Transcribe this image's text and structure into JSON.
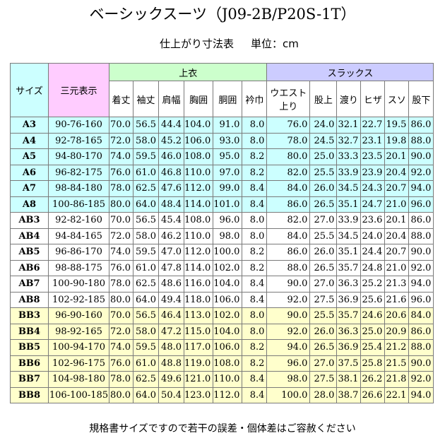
{
  "title": "ベーシックスーツ（J09-2B/P20S-1T）",
  "subtitle": {
    "label": "仕上がり寸法表",
    "unit": "単位：cm"
  },
  "header": {
    "size": "サイズ",
    "combo": "三元表示",
    "top_group": "上衣",
    "slacks_group": "スラックス",
    "top_cols": [
      "着丈",
      "袖丈",
      "肩幅",
      "胸囲",
      "胴囲",
      "衿巾"
    ],
    "slacks_cols": [
      "ウエスト上り",
      "股上",
      "渡り",
      "ヒザ",
      "スソ",
      "股下"
    ]
  },
  "colors": {
    "a_rows": "#ccffff",
    "ab_rows": "#ffffff",
    "bb_rows": "#ffffcc",
    "combo_header": "#ffccff",
    "top_header": "#ccffcc",
    "slacks_header": "#ccccff"
  },
  "rows": [
    {
      "size": "A3",
      "combo": "90-76-160",
      "v": [
        "70.0",
        "56.5",
        "44.4",
        "104.0",
        "91.0",
        "8.0",
        "76.0",
        "24.0",
        "32.1",
        "22.7",
        "19.5",
        "86.0"
      ]
    },
    {
      "size": "A4",
      "combo": "92-78-165",
      "v": [
        "72.0",
        "58.0",
        "45.2",
        "106.0",
        "93.0",
        "8.0",
        "78.0",
        "24.5",
        "32.7",
        "23.1",
        "19.8",
        "88.0"
      ]
    },
    {
      "size": "A5",
      "combo": "94-80-170",
      "v": [
        "74.0",
        "59.5",
        "46.0",
        "108.0",
        "95.0",
        "8.2",
        "80.0",
        "25.0",
        "33.3",
        "23.5",
        "20.1",
        "90.0"
      ]
    },
    {
      "size": "A6",
      "combo": "96-82-175",
      "v": [
        "76.0",
        "61.0",
        "46.8",
        "110.0",
        "97.0",
        "8.2",
        "82.0",
        "25.5",
        "33.9",
        "23.9",
        "20.4",
        "92.0"
      ]
    },
    {
      "size": "A7",
      "combo": "98-84-180",
      "v": [
        "78.0",
        "62.5",
        "47.6",
        "112.0",
        "99.0",
        "8.4",
        "84.0",
        "26.0",
        "34.5",
        "24.3",
        "20.7",
        "94.0"
      ]
    },
    {
      "size": "A8",
      "combo": "100-86-185",
      "v": [
        "80.0",
        "64.0",
        "48.4",
        "114.0",
        "101.0",
        "8.4",
        "86.0",
        "26.5",
        "35.1",
        "24.7",
        "21.0",
        "96.0"
      ]
    },
    {
      "size": "AB3",
      "combo": "92-82-160",
      "v": [
        "70.0",
        "56.5",
        "45.4",
        "108.0",
        "96.0",
        "8.0",
        "82.0",
        "27.0",
        "33.9",
        "23.6",
        "20.1",
        "86.0"
      ]
    },
    {
      "size": "AB4",
      "combo": "94-84-165",
      "v": [
        "72.0",
        "58.0",
        "46.2",
        "110.0",
        "98.0",
        "8.0",
        "84.0",
        "25.5",
        "34.5",
        "24.0",
        "20.4",
        "88.0"
      ]
    },
    {
      "size": "AB5",
      "combo": "96-86-170",
      "v": [
        "74.0",
        "59.5",
        "47.0",
        "112.0",
        "100.0",
        "8.2",
        "86.0",
        "26.0",
        "35.1",
        "24.4",
        "20.7",
        "90.0"
      ]
    },
    {
      "size": "AB6",
      "combo": "98-88-175",
      "v": [
        "76.0",
        "61.0",
        "47.8",
        "114.0",
        "102.0",
        "8.2",
        "88.0",
        "26.5",
        "35.7",
        "24.8",
        "21.0",
        "92.0"
      ]
    },
    {
      "size": "AB7",
      "combo": "100-90-180",
      "v": [
        "78.0",
        "62.5",
        "48.6",
        "116.0",
        "104.0",
        "8.4",
        "90.0",
        "27.0",
        "36.3",
        "25.2",
        "21.3",
        "94.0"
      ]
    },
    {
      "size": "AB8",
      "combo": "102-92-185",
      "v": [
        "80.0",
        "64.0",
        "49.4",
        "118.0",
        "106.0",
        "8.4",
        "92.0",
        "27.5",
        "36.9",
        "25.6",
        "21.6",
        "96.0"
      ]
    },
    {
      "size": "BB3",
      "combo": "96-90-160",
      "v": [
        "70.0",
        "56.5",
        "46.4",
        "113.0",
        "102.0",
        "8.0",
        "90.0",
        "25.5",
        "35.7",
        "24.6",
        "20.6",
        "84.0"
      ]
    },
    {
      "size": "BB4",
      "combo": "98-92-165",
      "v": [
        "72.0",
        "58.0",
        "47.2",
        "115.0",
        "104.0",
        "8.0",
        "92.0",
        "26.0",
        "36.3",
        "25.0",
        "20.9",
        "86.0"
      ]
    },
    {
      "size": "BB5",
      "combo": "100-94-170",
      "v": [
        "74.0",
        "59.5",
        "48.0",
        "117.0",
        "106.0",
        "8.2",
        "94.0",
        "26.5",
        "36.9",
        "25.4",
        "21.2",
        "88.0"
      ]
    },
    {
      "size": "BB6",
      "combo": "102-96-175",
      "v": [
        "76.0",
        "61.0",
        "48.8",
        "119.0",
        "108.0",
        "8.2",
        "96.0",
        "27.0",
        "37.5",
        "25.8",
        "21.5",
        "90.0"
      ]
    },
    {
      "size": "BB7",
      "combo": "104-98-180",
      "v": [
        "78.0",
        "62.5",
        "49.6",
        "121.0",
        "110.0",
        "8.4",
        "98.0",
        "27.5",
        "38.1",
        "26.2",
        "21.8",
        "92.0"
      ]
    },
    {
      "size": "BB8",
      "combo": "106-100-185",
      "v": [
        "80.0",
        "64.0",
        "50.4",
        "123.0",
        "112.0",
        "8.4",
        "100.0",
        "28.0",
        "38.7",
        "26.6",
        "22.1",
        "94.0"
      ]
    }
  ],
  "footer": "規格書サイズですので若干の誤差・個体差はご容赦ください"
}
